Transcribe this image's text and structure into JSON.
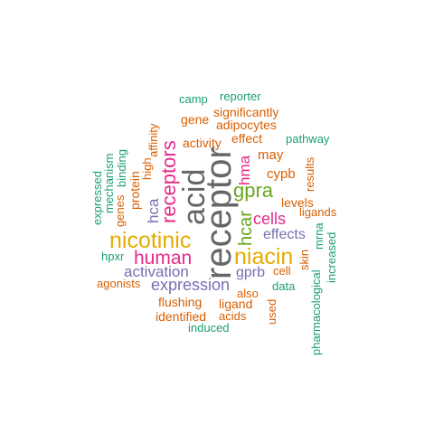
{
  "colors": {
    "teal": "#1b9e77",
    "orange": "#d95f02",
    "purple": "#7570b3",
    "magenta": "#e7298a",
    "green": "#66a61e",
    "gold": "#e6ab02",
    "gray": "#666666"
  },
  "words": [
    {
      "text": "receptor",
      "color": "gray"
    },
    {
      "text": "acid",
      "color": "gray"
    },
    {
      "text": "nicotinic",
      "color": "gold"
    },
    {
      "text": "niacin",
      "color": "gold"
    },
    {
      "text": "human",
      "color": "magenta"
    },
    {
      "text": "receptors",
      "color": "magenta"
    },
    {
      "text": "gpra",
      "color": "green"
    },
    {
      "text": "hcar",
      "color": "green"
    },
    {
      "text": "cells",
      "color": "magenta"
    },
    {
      "text": "expression",
      "color": "purple"
    },
    {
      "text": "activation",
      "color": "purple"
    },
    {
      "text": "hma",
      "color": "magenta"
    },
    {
      "text": "hca",
      "color": "purple"
    },
    {
      "text": "effects",
      "color": "purple"
    },
    {
      "text": "gprb",
      "color": "purple"
    },
    {
      "text": "camp",
      "color": "teal"
    },
    {
      "text": "reporter",
      "color": "teal"
    },
    {
      "text": "significantly",
      "color": "orange"
    },
    {
      "text": "gene",
      "color": "orange"
    },
    {
      "text": "adipocytes",
      "color": "orange"
    },
    {
      "text": "activity",
      "color": "orange"
    },
    {
      "text": "effect",
      "color": "orange"
    },
    {
      "text": "pathway",
      "color": "teal"
    },
    {
      "text": "may",
      "color": "orange"
    },
    {
      "text": "cypb",
      "color": "orange"
    },
    {
      "text": "levels",
      "color": "orange"
    },
    {
      "text": "ligands",
      "color": "orange"
    },
    {
      "text": "results",
      "color": "orange"
    },
    {
      "text": "affinity",
      "color": "orange"
    },
    {
      "text": "high",
      "color": "orange"
    },
    {
      "text": "protein",
      "color": "orange"
    },
    {
      "text": "binding",
      "color": "teal"
    },
    {
      "text": "genes",
      "color": "orange"
    },
    {
      "text": "mechanism",
      "color": "teal"
    },
    {
      "text": "expressed",
      "color": "teal"
    },
    {
      "text": "hpxr",
      "color": "teal"
    },
    {
      "text": "agonists",
      "color": "orange"
    },
    {
      "text": "flushing",
      "color": "orange"
    },
    {
      "text": "identified",
      "color": "orange"
    },
    {
      "text": "induced",
      "color": "teal"
    },
    {
      "text": "ligand",
      "color": "orange"
    },
    {
      "text": "acids",
      "color": "orange"
    },
    {
      "text": "also",
      "color": "orange"
    },
    {
      "text": "used",
      "color": "orange"
    },
    {
      "text": "data",
      "color": "teal"
    },
    {
      "text": "cell",
      "color": "orange"
    },
    {
      "text": "skin",
      "color": "orange"
    },
    {
      "text": "mrna",
      "color": "teal"
    },
    {
      "text": "pharmacological",
      "color": "teal"
    },
    {
      "text": "increased",
      "color": "teal"
    }
  ]
}
